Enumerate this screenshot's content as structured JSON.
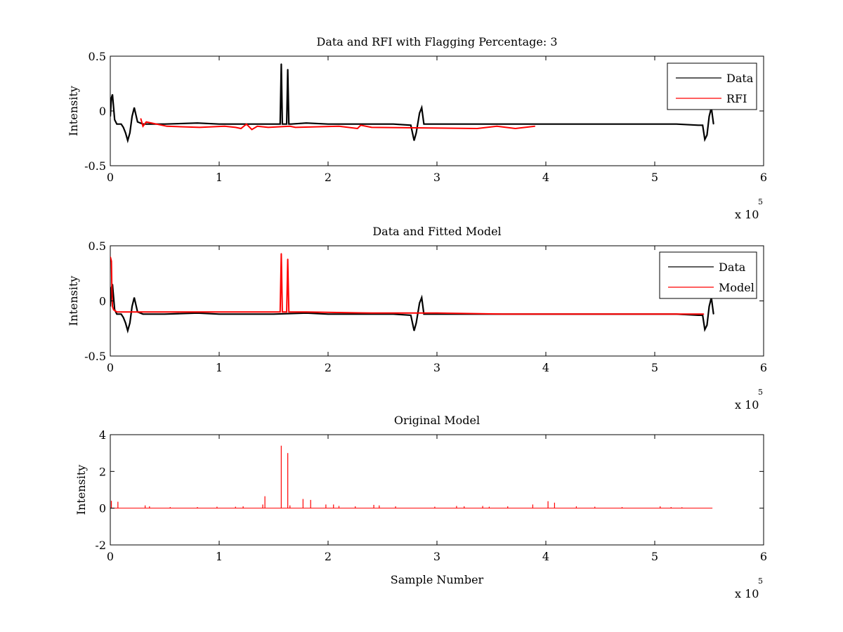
{
  "figure": {
    "background": "#ffffff"
  },
  "chart_data": [
    {
      "type": "line",
      "title": "Data and RFI with Flagging Percentage: 3",
      "xlabel": "",
      "ylabel": "Intensity",
      "xlim": [
        0,
        6
      ],
      "ylim": [
        -0.5,
        0.5
      ],
      "xticks": [
        "0",
        "1",
        "2",
        "3",
        "4",
        "5",
        "6"
      ],
      "yticks": [
        "-0.5",
        "0",
        "0.5"
      ],
      "xticks_values": [
        0,
        1,
        2,
        3,
        4,
        5,
        6
      ],
      "yticks_values": [
        -0.5,
        0,
        0.5
      ],
      "x_exponent": {
        "prefix": "x 10",
        "power": "5"
      },
      "legend": {
        "location": "top-right",
        "entries": [
          "Data",
          "RFI"
        ]
      },
      "series": [
        {
          "name": "Data",
          "color": "#000000",
          "x": [
            0,
            0.01,
            0.02,
            0.04,
            0.06,
            0.08,
            0.1,
            0.12,
            0.14,
            0.16,
            0.18,
            0.2,
            0.22,
            0.25,
            0.3,
            0.5,
            0.8,
            1.0,
            1.3,
            1.5,
            1.56,
            1.57,
            1.58,
            1.6,
            1.62,
            1.63,
            1.64,
            1.66,
            1.8,
            2.0,
            2.3,
            2.6,
            2.76,
            2.79,
            2.81,
            2.84,
            2.86,
            2.88,
            2.92,
            3.2,
            3.6,
            4.0,
            4.4,
            4.8,
            5.2,
            5.4,
            5.44,
            5.46,
            5.48,
            5.5,
            5.52,
            5.54
          ],
          "y": [
            -0.05,
            0.12,
            0.15,
            -0.08,
            -0.12,
            -0.12,
            -0.12,
            -0.15,
            -0.2,
            -0.27,
            -0.2,
            -0.05,
            0.03,
            -0.1,
            -0.12,
            -0.12,
            -0.11,
            -0.12,
            -0.12,
            -0.12,
            -0.12,
            0.43,
            -0.12,
            -0.12,
            -0.12,
            0.38,
            -0.12,
            -0.12,
            -0.11,
            -0.12,
            -0.12,
            -0.12,
            -0.13,
            -0.27,
            -0.2,
            -0.02,
            0.03,
            -0.12,
            -0.12,
            -0.12,
            -0.12,
            -0.12,
            -0.12,
            -0.12,
            -0.12,
            -0.13,
            -0.13,
            -0.26,
            -0.22,
            -0.05,
            0.03,
            -0.12
          ]
        },
        {
          "name": "RFI",
          "color": "#ff0000",
          "x": [
            0.28,
            0.3,
            0.33,
            0.52,
            0.82,
            1.05,
            1.15,
            1.2,
            1.25,
            1.3,
            1.35,
            1.45,
            1.65,
            1.7,
            2.1,
            2.27,
            2.3,
            2.4,
            3.37,
            3.55,
            3.72,
            3.9
          ],
          "y": [
            -0.07,
            -0.14,
            -0.1,
            -0.14,
            -0.15,
            -0.14,
            -0.15,
            -0.16,
            -0.12,
            -0.17,
            -0.14,
            -0.15,
            -0.14,
            -0.15,
            -0.14,
            -0.16,
            -0.13,
            -0.15,
            -0.16,
            -0.14,
            -0.16,
            -0.14
          ]
        }
      ]
    },
    {
      "type": "line",
      "title": "Data and Fitted Model",
      "xlabel": "",
      "ylabel": "Intensity",
      "xlim": [
        0,
        6
      ],
      "ylim": [
        -0.5,
        0.5
      ],
      "xticks": [
        "0",
        "1",
        "2",
        "3",
        "4",
        "5",
        "6"
      ],
      "yticks": [
        "-0.5",
        "0",
        "0.5"
      ],
      "xticks_values": [
        0,
        1,
        2,
        3,
        4,
        5,
        6
      ],
      "yticks_values": [
        -0.5,
        0,
        0.5
      ],
      "x_exponent": {
        "prefix": "x 10",
        "power": "5"
      },
      "legend": {
        "location": "top-right",
        "entries": [
          "Data",
          "Model"
        ]
      },
      "series": [
        {
          "name": "Data",
          "color": "#000000",
          "x": [
            0,
            0.01,
            0.02,
            0.04,
            0.06,
            0.08,
            0.1,
            0.12,
            0.14,
            0.16,
            0.18,
            0.2,
            0.22,
            0.25,
            0.3,
            0.5,
            0.8,
            1.0,
            1.3,
            1.5,
            1.8,
            2.0,
            2.3,
            2.6,
            2.76,
            2.79,
            2.81,
            2.84,
            2.86,
            2.88,
            2.92,
            3.2,
            3.6,
            4.0,
            4.4,
            4.8,
            5.2,
            5.4,
            5.44,
            5.46,
            5.48,
            5.5,
            5.52,
            5.54
          ],
          "y": [
            -0.05,
            0.12,
            0.15,
            -0.08,
            -0.12,
            -0.12,
            -0.12,
            -0.15,
            -0.2,
            -0.27,
            -0.2,
            -0.05,
            0.03,
            -0.1,
            -0.12,
            -0.12,
            -0.11,
            -0.12,
            -0.12,
            -0.12,
            -0.11,
            -0.12,
            -0.12,
            -0.12,
            -0.13,
            -0.27,
            -0.2,
            -0.02,
            0.03,
            -0.12,
            -0.12,
            -0.12,
            -0.12,
            -0.12,
            -0.12,
            -0.12,
            -0.12,
            -0.13,
            -0.13,
            -0.26,
            -0.22,
            -0.05,
            0.03,
            -0.12
          ]
        },
        {
          "name": "Model",
          "color": "#ff0000",
          "x": [
            0,
            0.005,
            0.01,
            0.015,
            0.02,
            0.03,
            0.06,
            0.3,
            0.8,
            1.4,
            1.56,
            1.57,
            1.58,
            1.62,
            1.63,
            1.64,
            1.8,
            2.4,
            3.0,
            3.6,
            4.0,
            4.5,
            5.0,
            5.45
          ],
          "y": [
            0.4,
            0.38,
            0.36,
            0.1,
            -0.05,
            -0.08,
            -0.1,
            -0.1,
            -0.1,
            -0.1,
            -0.1,
            0.43,
            -0.1,
            -0.1,
            0.38,
            -0.1,
            -0.1,
            -0.11,
            -0.11,
            -0.12,
            -0.12,
            -0.12,
            -0.12,
            -0.12
          ]
        }
      ]
    },
    {
      "type": "line",
      "title": "Original Model",
      "xlabel": "Sample Number",
      "ylabel": "Intensity",
      "xlim": [
        0,
        6
      ],
      "ylim": [
        -2,
        4
      ],
      "xticks": [
        "0",
        "1",
        "2",
        "3",
        "4",
        "5",
        "6"
      ],
      "yticks": [
        "-2",
        "0",
        "2",
        "4"
      ],
      "xticks_values": [
        0,
        1,
        2,
        3,
        4,
        5,
        6
      ],
      "yticks_values": [
        -2,
        0,
        2,
        4
      ],
      "x_exponent": {
        "prefix": "x 10",
        "power": "5"
      },
      "series": [
        {
          "name": "Original Model",
          "color": "#ff0000",
          "baseline": 0,
          "x_end": 5.53,
          "spikes": [
            [
              0.01,
              0.4
            ],
            [
              0.07,
              0.35
            ],
            [
              0.32,
              0.15
            ],
            [
              0.36,
              0.1
            ],
            [
              0.55,
              0.06
            ],
            [
              0.8,
              0.06
            ],
            [
              0.98,
              0.08
            ],
            [
              1.15,
              0.08
            ],
            [
              1.22,
              0.1
            ],
            [
              1.4,
              0.2
            ],
            [
              1.42,
              0.65
            ],
            [
              1.57,
              3.4
            ],
            [
              1.63,
              3.0
            ],
            [
              1.65,
              0.15
            ],
            [
              1.77,
              0.5
            ],
            [
              1.84,
              0.45
            ],
            [
              1.98,
              0.2
            ],
            [
              2.05,
              0.2
            ],
            [
              2.1,
              0.12
            ],
            [
              2.25,
              0.1
            ],
            [
              2.42,
              0.18
            ],
            [
              2.47,
              0.15
            ],
            [
              2.62,
              0.1
            ],
            [
              2.98,
              0.08
            ],
            [
              3.18,
              0.12
            ],
            [
              3.25,
              0.1
            ],
            [
              3.42,
              0.12
            ],
            [
              3.48,
              0.08
            ],
            [
              3.65,
              0.1
            ],
            [
              3.88,
              0.2
            ],
            [
              4.02,
              0.38
            ],
            [
              4.08,
              0.3
            ],
            [
              4.28,
              0.1
            ],
            [
              4.45,
              0.08
            ],
            [
              4.7,
              0.06
            ],
            [
              5.05,
              0.1
            ],
            [
              5.15,
              0.06
            ],
            [
              5.25,
              0.05
            ]
          ]
        }
      ]
    }
  ]
}
